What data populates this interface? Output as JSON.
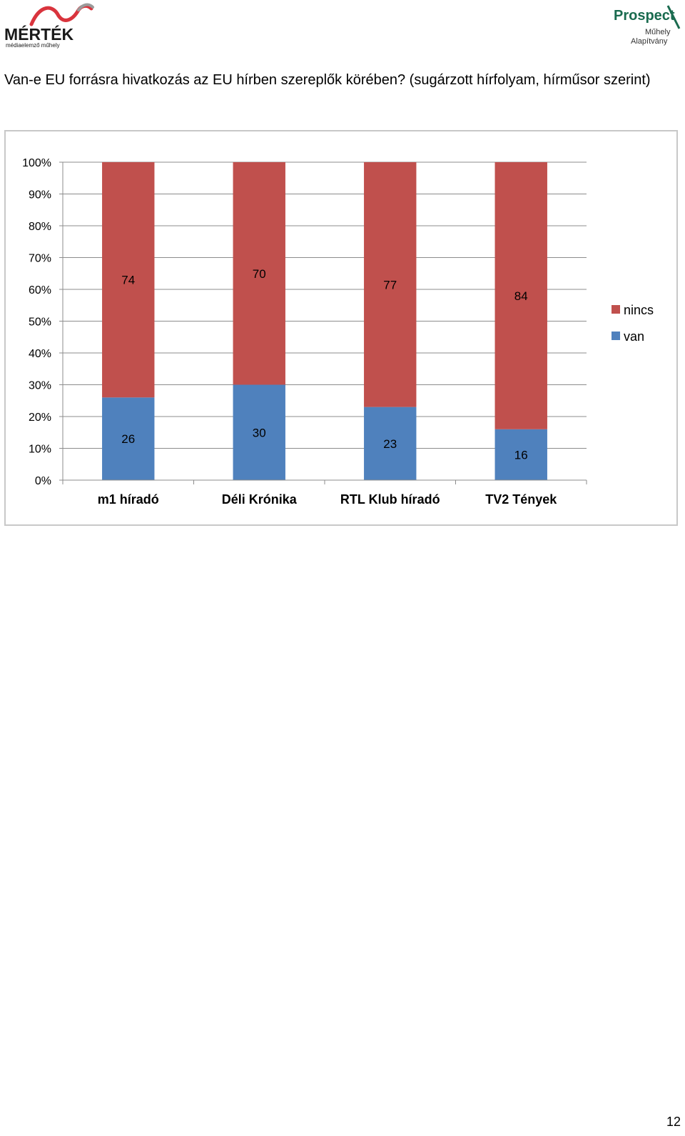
{
  "logos": {
    "left": {
      "name": "MÉRTÉK",
      "tagline": "médiaelemző műhely",
      "accent": "#d9343d"
    },
    "right": {
      "name": "Prospect",
      "line2": "Műhely",
      "line3": "Alapítvány",
      "color": "#1a6b4f"
    }
  },
  "heading": {
    "text": "Van-e EU forrásra hivatkozás az EU hírben szereplők körében? (sugárzott hírfolyam, hírműsor szerint)"
  },
  "page_number": "12",
  "chart_data": {
    "type": "bar",
    "stacked": true,
    "percent": true,
    "categories": [
      "m1 híradó",
      "Déli Krónika",
      "RTL Klub híradó",
      "TV2 Tények"
    ],
    "series": [
      {
        "name": "van",
        "values": [
          26,
          30,
          23,
          16
        ],
        "color": "#4f81bd"
      },
      {
        "name": "nincs",
        "values": [
          74,
          70,
          77,
          84
        ],
        "color": "#c0504d"
      }
    ],
    "ylim": [
      0,
      100
    ],
    "yticks": [
      "0%",
      "10%",
      "20%",
      "30%",
      "40%",
      "50%",
      "60%",
      "70%",
      "80%",
      "90%",
      "100%"
    ],
    "grid": true,
    "legend": "right",
    "legend_order": [
      "nincs",
      "van"
    ],
    "data_labels": true
  }
}
